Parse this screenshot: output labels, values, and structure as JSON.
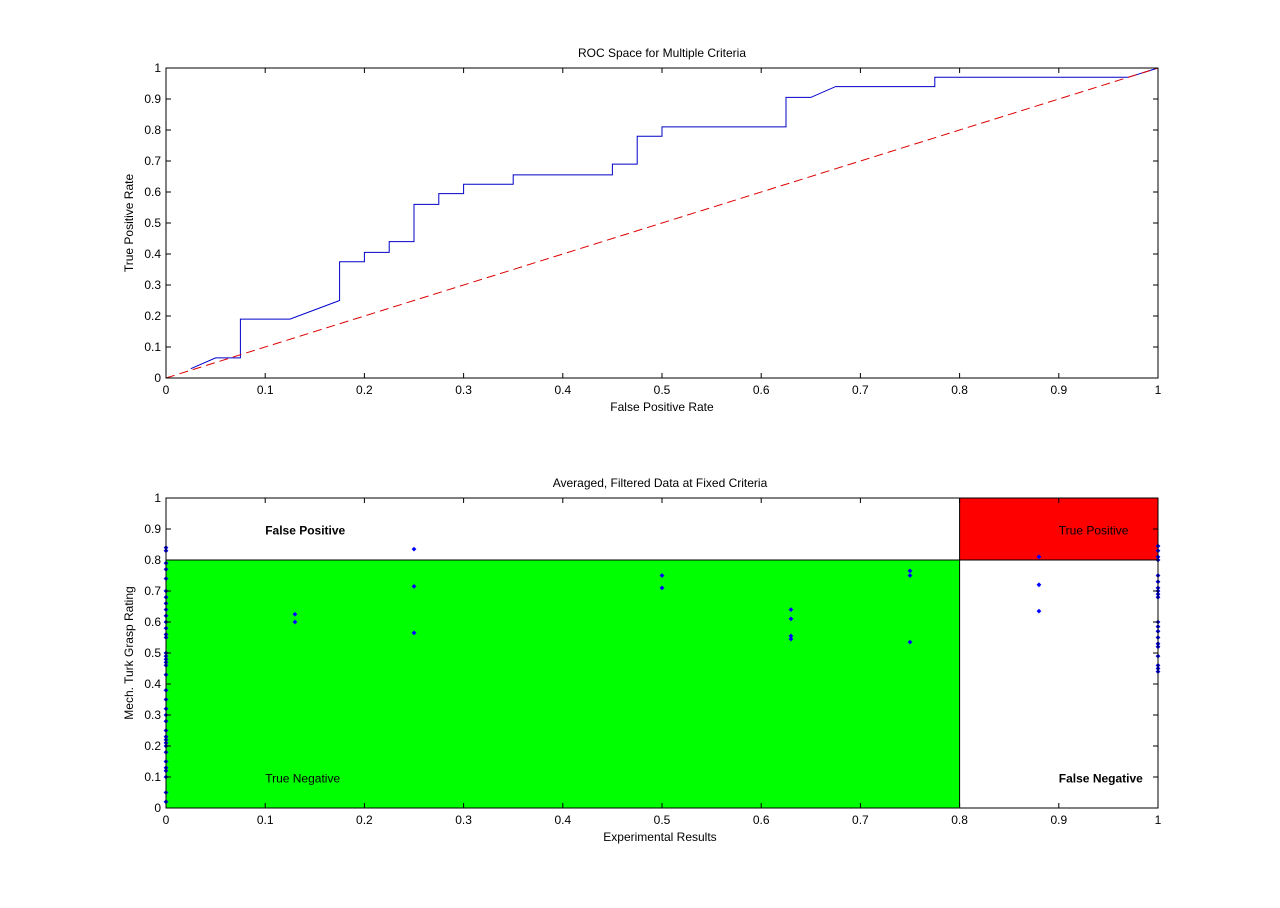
{
  "colors": {
    "roc_line": "#0000cc",
    "diagonal": "#dd0000",
    "true_negative_region": "#00ff00",
    "true_positive_region": "#ff0000",
    "points": "#0000ff"
  },
  "chart_data": [
    {
      "type": "line",
      "title": "ROC Space for Multiple Criteria",
      "xlabel": "False Positive Rate",
      "ylabel": "True Positive Rate",
      "xlim": [
        0,
        1
      ],
      "ylim": [
        0,
        1
      ],
      "xticks": [
        0,
        0.1,
        0.2,
        0.3,
        0.4,
        0.5,
        0.6,
        0.7,
        0.8,
        0.9,
        1
      ],
      "yticks": [
        0,
        0.1,
        0.2,
        0.3,
        0.4,
        0.5,
        0.6,
        0.7,
        0.8,
        0.9,
        1
      ],
      "tick_labels_x": [
        "0",
        "0.1",
        "0.2",
        "0.3",
        "0.4",
        "0.5",
        "0.6",
        "0.7",
        "0.8",
        "0.9",
        "1"
      ],
      "tick_labels_y": [
        "0",
        "0.1",
        "0.2",
        "0.3",
        "0.4",
        "0.5",
        "0.6",
        "0.7",
        "0.8",
        "0.9",
        "1"
      ],
      "grid": false,
      "series": [
        {
          "style": "solid",
          "color": "#0000cc",
          "x": [
            0.025,
            0.05,
            0.075,
            0.075,
            0.125,
            0.175,
            0.175,
            0.2,
            0.2,
            0.225,
            0.225,
            0.25,
            0.25,
            0.275,
            0.275,
            0.3,
            0.3,
            0.35,
            0.35,
            0.45,
            0.45,
            0.475,
            0.475,
            0.5,
            0.5,
            0.625,
            0.625,
            0.65,
            0.675,
            0.775,
            0.775,
            0.97,
            1.0
          ],
          "y": [
            0.03,
            0.065,
            0.065,
            0.19,
            0.19,
            0.25,
            0.375,
            0.375,
            0.405,
            0.405,
            0.44,
            0.44,
            0.56,
            0.56,
            0.595,
            0.595,
            0.625,
            0.625,
            0.655,
            0.655,
            0.69,
            0.69,
            0.78,
            0.78,
            0.81,
            0.81,
            0.905,
            0.905,
            0.94,
            0.94,
            0.97,
            0.97,
            1.0
          ]
        },
        {
          "style": "dashed",
          "color": "#dd0000",
          "x": [
            0,
            1
          ],
          "y": [
            0,
            1
          ]
        }
      ]
    },
    {
      "type": "scatter",
      "title": "Averaged, Filtered Data at Fixed Criteria",
      "xlabel": "Experimental Results",
      "ylabel": "Mech. Turk Grasp Rating",
      "xlim": [
        0,
        1
      ],
      "ylim": [
        0,
        1
      ],
      "xticks": [
        0,
        0.1,
        0.2,
        0.3,
        0.4,
        0.5,
        0.6,
        0.7,
        0.8,
        0.9,
        1
      ],
      "yticks": [
        0,
        0.1,
        0.2,
        0.3,
        0.4,
        0.5,
        0.6,
        0.7,
        0.8,
        0.9,
        1
      ],
      "tick_labels_x": [
        "0",
        "0.1",
        "0.2",
        "0.3",
        "0.4",
        "0.5",
        "0.6",
        "0.7",
        "0.8",
        "0.9",
        "1"
      ],
      "tick_labels_y": [
        "0",
        "0.1",
        "0.2",
        "0.3",
        "0.4",
        "0.5",
        "0.6",
        "0.7",
        "0.8",
        "0.9",
        "1"
      ],
      "grid": false,
      "regions": [
        {
          "name": "True Negative",
          "x": [
            0,
            0.8
          ],
          "y": [
            0,
            0.8
          ],
          "color": "#00ff00"
        },
        {
          "name": "True Positive",
          "x": [
            0.8,
            1
          ],
          "y": [
            0.8,
            1
          ],
          "color": "#ff0000"
        }
      ],
      "annotations": [
        {
          "text": "False Positive",
          "x": 0.1,
          "y": 0.895,
          "bold": true
        },
        {
          "text": "True Positive",
          "x": 0.9,
          "y": 0.895,
          "bold": false
        },
        {
          "text": "True Negative",
          "x": 0.1,
          "y": 0.095,
          "bold": false
        },
        {
          "text": "False Negative",
          "x": 0.9,
          "y": 0.095,
          "bold": true
        }
      ],
      "points": {
        "x": [
          0,
          0,
          0,
          0,
          0,
          0,
          0,
          0,
          0,
          0,
          0,
          0,
          0,
          0,
          0,
          0,
          0,
          0,
          0,
          0,
          0,
          0,
          0,
          0,
          0,
          0,
          0,
          0,
          0,
          0,
          0,
          0,
          0,
          0,
          0,
          0,
          0,
          0.13,
          0.13,
          0.25,
          0.25,
          0.25,
          0.5,
          0.5,
          0.63,
          0.63,
          0.63,
          0.63,
          0.75,
          0.75,
          0.75,
          0.88,
          0.88,
          0.88,
          1,
          1,
          1,
          1,
          1,
          1,
          1,
          1,
          1,
          1,
          1,
          1,
          1,
          1,
          1,
          1,
          1,
          1,
          1,
          1
        ],
        "y": [
          0.84,
          0.83,
          0.79,
          0.77,
          0.74,
          0.7,
          0.68,
          0.66,
          0.64,
          0.62,
          0.6,
          0.58,
          0.56,
          0.55,
          0.5,
          0.49,
          0.48,
          0.47,
          0.46,
          0.43,
          0.38,
          0.35,
          0.32,
          0.3,
          0.28,
          0.25,
          0.23,
          0.22,
          0.21,
          0.2,
          0.18,
          0.15,
          0.13,
          0.12,
          0.1,
          0.05,
          0.02,
          0.625,
          0.6,
          0.835,
          0.715,
          0.565,
          0.75,
          0.71,
          0.64,
          0.61,
          0.555,
          0.545,
          0.765,
          0.75,
          0.535,
          0.81,
          0.72,
          0.635,
          0.845,
          0.83,
          0.81,
          0.8,
          0.75,
          0.73,
          0.71,
          0.7,
          0.69,
          0.68,
          0.6,
          0.585,
          0.57,
          0.55,
          0.53,
          0.52,
          0.49,
          0.46,
          0.45,
          0.44
        ]
      }
    }
  ]
}
